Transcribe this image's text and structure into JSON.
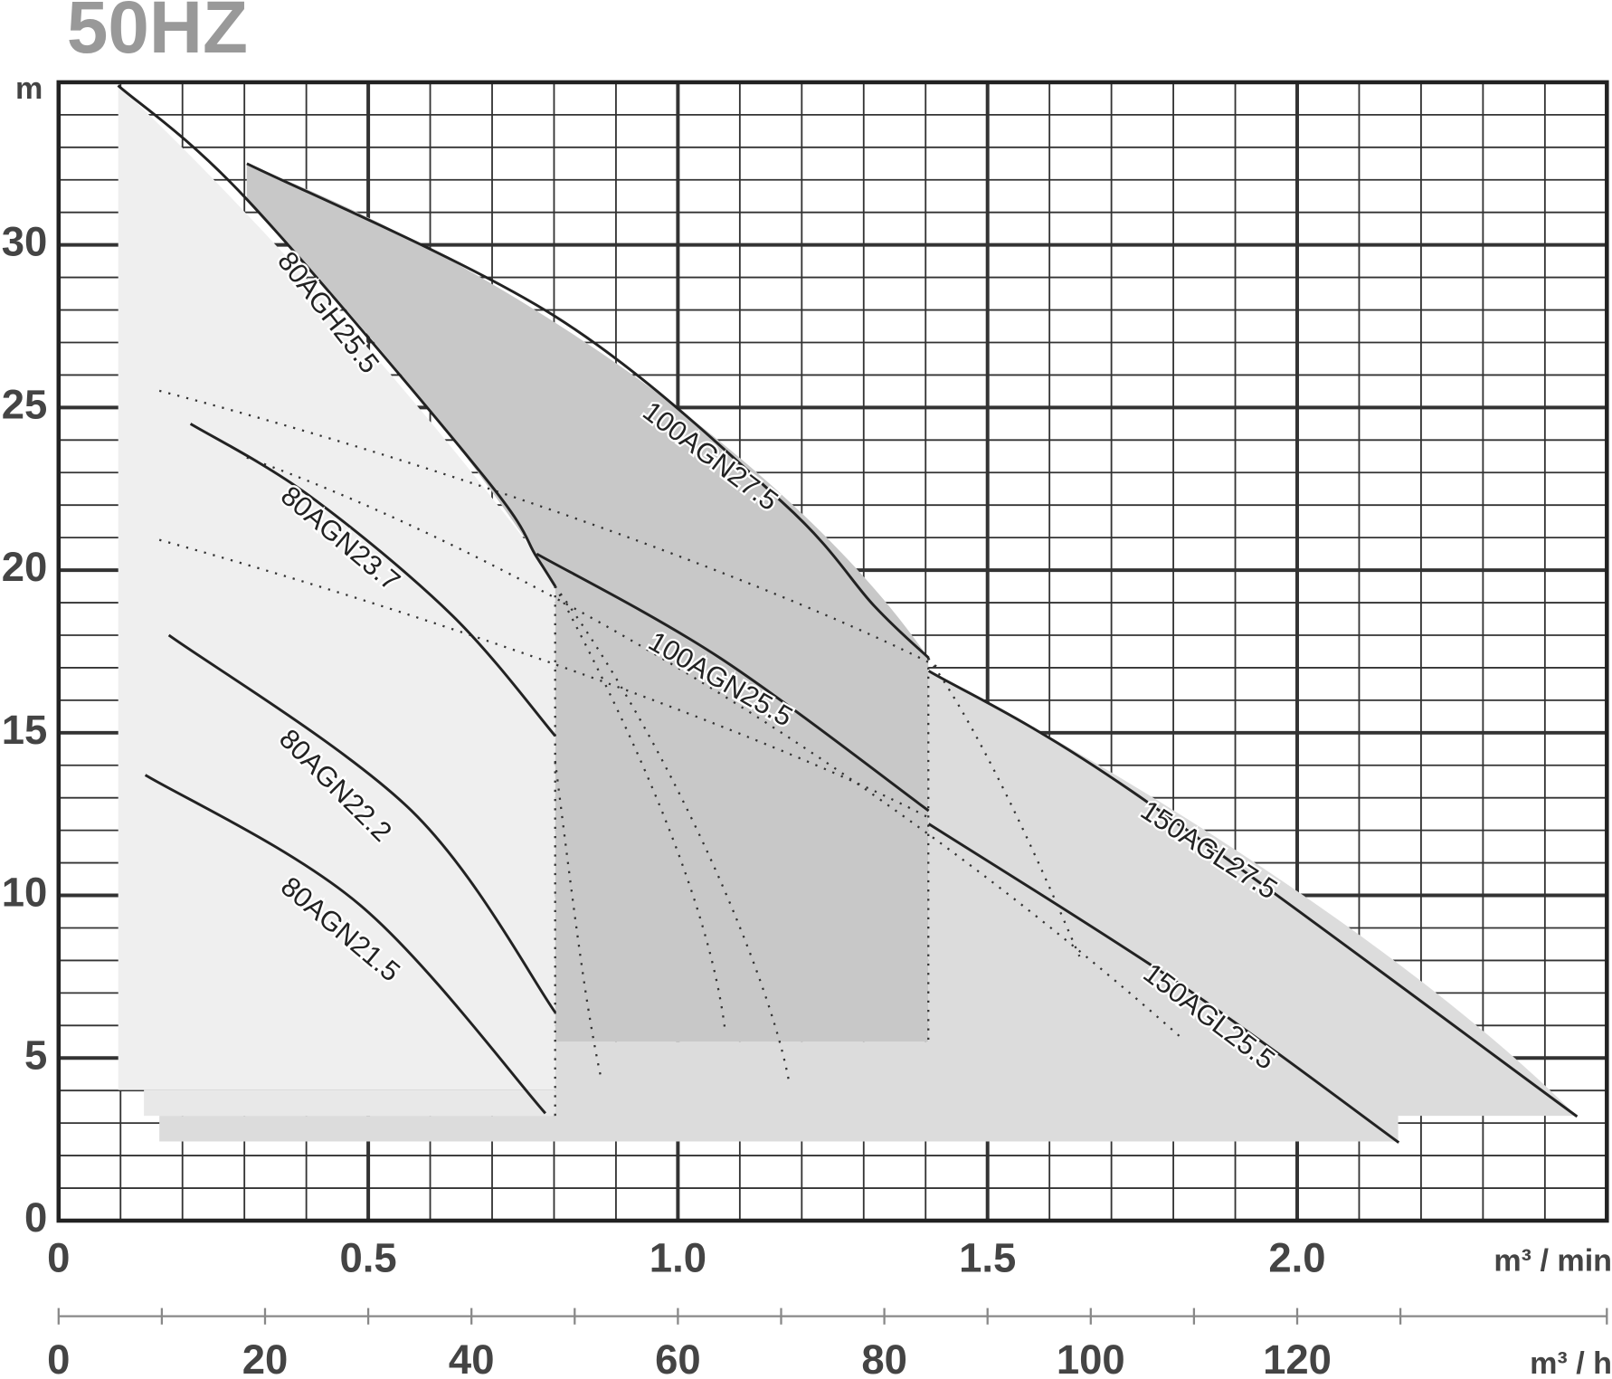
{
  "chart_data": {
    "type": "line",
    "title": "50HZ",
    "y_label": "m",
    "x_label": "m³ / min",
    "x2_label": "m³ / h",
    "xlim": [
      0,
      2.5
    ],
    "xticks": [
      0,
      0.5,
      {
        "value": 1,
        "label": "1.0"
      },
      1.5,
      {
        "value": 2,
        "label": "2.0"
      }
    ],
    "ylim": [
      0,
      35
    ],
    "yticks": [
      0,
      5,
      10,
      15,
      20,
      25,
      30
    ],
    "x2lim": [
      0,
      150
    ],
    "x2ticks": [
      0,
      20,
      40,
      60,
      80,
      100,
      120
    ],
    "grid": true,
    "series": [
      {
        "name": "80AGH25.5",
        "color": "#222222",
        "x": [
          0.096,
          0.304,
          0.686,
          0.772,
          0.802
        ],
        "values": [
          34.9,
          31.4,
          22.9,
          20.4,
          19.5
        ]
      },
      {
        "name": "100AGN27.5",
        "color": "#222222",
        "x": [
          0.304,
          0.802,
          1.168,
          1.317,
          1.405
        ],
        "values": [
          32.5,
          27.8,
          22.1,
          18.9,
          17.3
        ]
      },
      {
        "name": "80AGN23.7",
        "color": "#222222",
        "x": [
          0.213,
          0.404,
          0.636,
          0.802
        ],
        "values": [
          24.5,
          22.3,
          18.6,
          14.9
        ]
      },
      {
        "name": "80AGN22.2",
        "color": "#222222",
        "x": [
          0.178,
          0.57,
          0.802
        ],
        "values": [
          18.0,
          12.6,
          6.4
        ]
      },
      {
        "name": "80AGN21.5",
        "color": "#222222",
        "x": [
          0.14,
          0.487,
          0.786
        ],
        "values": [
          13.7,
          9.7,
          3.3
        ]
      },
      {
        "name": "100AGN25.5",
        "color": "#222222",
        "x": [
          0.772,
          1.068,
          1.405
        ],
        "values": [
          20.5,
          17.3,
          12.6
        ]
      },
      {
        "name": "150AGL27.5",
        "color": "#222222",
        "x": [
          1.405,
          1.733,
          2.452
        ],
        "values": [
          16.9,
          13.2,
          3.2
        ]
      },
      {
        "name": "150AGL25.5",
        "color": "#222222",
        "x": [
          1.405,
          1.816,
          2.164
        ],
        "values": [
          12.2,
          7.2,
          2.4
        ]
      }
    ]
  }
}
